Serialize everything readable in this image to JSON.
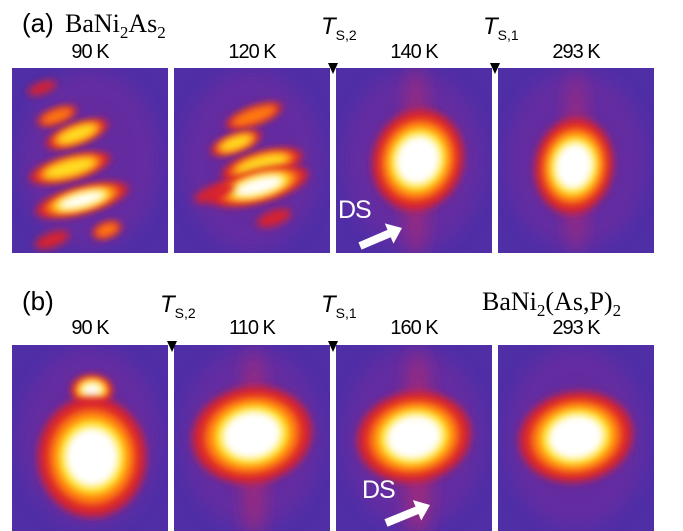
{
  "panels": [
    {
      "label": "(a)",
      "material": [
        "BaNi",
        "2",
        "As",
        "2"
      ],
      "temperatures": [
        "90 K",
        "120 K",
        "140 K",
        "293 K"
      ],
      "transitions": [
        {
          "symbol": "T",
          "subscript": "S,2"
        },
        {
          "symbol": "T",
          "subscript": "S,1"
        }
      ],
      "annotation": "DS"
    },
    {
      "label": "(b)",
      "material": [
        "BaNi",
        "2",
        "(As,P)",
        "2"
      ],
      "temperatures": [
        "90 K",
        "110 K",
        "160 K",
        "293 K"
      ],
      "transitions": [
        {
          "symbol": "T",
          "subscript": "S,2"
        },
        {
          "symbol": "T",
          "subscript": "S,1"
        }
      ],
      "annotation": "DS"
    }
  ]
}
